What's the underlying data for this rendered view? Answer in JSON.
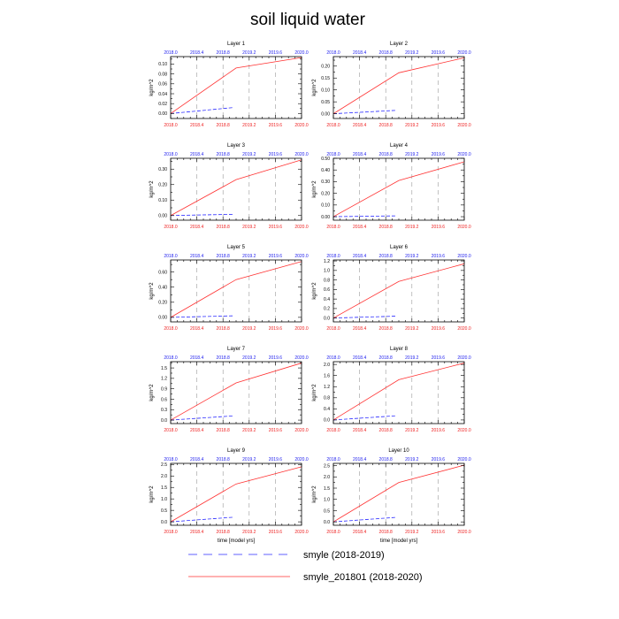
{
  "figure_title": "soil liquid water",
  "legend": [
    {
      "label": "smyle (2018-2019)",
      "color": "#2c2cff",
      "style": "dashed"
    },
    {
      "label": "smyle_201801 (2018-2020)",
      "color": "#ff3333",
      "style": "solid"
    }
  ],
  "chart_data": [
    {
      "type": "line",
      "title": "Layer 1",
      "ylabel": "kg/m^2",
      "xlabel": "",
      "xlim": [
        2018.0,
        2020.0
      ],
      "x_ticks": [
        "2018.0",
        "2018.4",
        "2018.8",
        "2019.2",
        "2019.6",
        "2020.0"
      ],
      "top_x_ticks": [
        "2018.0",
        "2018.4",
        "2018.8",
        "2019.2",
        "2019.6",
        "2020.0"
      ],
      "ylim": [
        -0.01,
        0.115
      ],
      "y_ticks": [
        "0.00",
        "0.02",
        "0.04",
        "0.06",
        "0.08",
        "0.10"
      ],
      "vlines": [
        2018.4,
        2018.8,
        2019.2,
        2019.6
      ],
      "series": [
        {
          "x": [
            2018.0,
            2018.95
          ],
          "values": [
            0.0,
            0.012
          ]
        },
        {
          "x": [
            2018.0,
            2019.0,
            2020.0
          ],
          "values": [
            0.0,
            0.092,
            0.113
          ]
        }
      ]
    },
    {
      "type": "line",
      "title": "Layer 2",
      "ylabel": "kg/m^2",
      "xlabel": "",
      "xlim": [
        2018.0,
        2020.0
      ],
      "x_ticks": [
        "2018.0",
        "2018.4",
        "2018.8",
        "2019.2",
        "2019.6",
        "2020.0"
      ],
      "top_x_ticks": [
        "2018.0",
        "2018.4",
        "2018.8",
        "2019.2",
        "2019.6",
        "2020.0"
      ],
      "ylim": [
        -0.02,
        0.24
      ],
      "y_ticks": [
        "0.00",
        "0.05",
        "0.10",
        "0.15",
        "0.20"
      ],
      "vlines": [
        2018.4,
        2018.8,
        2019.2,
        2019.6
      ],
      "series": [
        {
          "x": [
            2018.0,
            2018.95
          ],
          "values": [
            0.0,
            0.014
          ]
        },
        {
          "x": [
            2018.0,
            2019.0,
            2020.0
          ],
          "values": [
            0.0,
            0.172,
            0.235
          ]
        }
      ]
    },
    {
      "type": "line",
      "title": "Layer 3",
      "ylabel": "kg/m^2",
      "xlabel": "",
      "xlim": [
        2018.0,
        2020.0
      ],
      "x_ticks": [
        "2018.0",
        "2018.4",
        "2018.8",
        "2019.2",
        "2019.6",
        "2020.0"
      ],
      "top_x_ticks": [
        "2018.0",
        "2018.4",
        "2018.8",
        "2019.2",
        "2019.6",
        "2020.0"
      ],
      "ylim": [
        -0.03,
        0.37
      ],
      "y_ticks": [
        "0.00",
        "0.10",
        "0.20",
        "0.30"
      ],
      "vlines": [
        2018.4,
        2018.8,
        2019.2,
        2019.6
      ],
      "series": [
        {
          "x": [
            2018.0,
            2018.95
          ],
          "values": [
            0.0,
            0.008
          ]
        },
        {
          "x": [
            2018.0,
            2019.0,
            2020.0
          ],
          "values": [
            0.0,
            0.232,
            0.36
          ]
        }
      ]
    },
    {
      "type": "line",
      "title": "Layer 4",
      "ylabel": "kg/m^2",
      "xlabel": "",
      "xlim": [
        2018.0,
        2020.0
      ],
      "x_ticks": [
        "2018.0",
        "2018.4",
        "2018.8",
        "2019.2",
        "2019.6",
        "2020.0"
      ],
      "top_x_ticks": [
        "2018.0",
        "2018.4",
        "2018.8",
        "2019.2",
        "2019.6",
        "2020.0"
      ],
      "ylim": [
        -0.03,
        0.5
      ],
      "y_ticks": [
        "0.00",
        "0.10",
        "0.20",
        "0.30",
        "0.40",
        "0.50"
      ],
      "vlines": [
        2018.4,
        2018.8,
        2019.2,
        2019.6
      ],
      "series": [
        {
          "x": [
            2018.0,
            2018.95
          ],
          "values": [
            0.0,
            0.007
          ]
        },
        {
          "x": [
            2018.0,
            2019.0,
            2020.0
          ],
          "values": [
            0.0,
            0.31,
            0.47
          ]
        }
      ]
    },
    {
      "type": "line",
      "title": "Layer 5",
      "ylabel": "kg/m^2",
      "xlabel": "",
      "xlim": [
        2018.0,
        2020.0
      ],
      "x_ticks": [
        "2018.0",
        "2018.4",
        "2018.8",
        "2019.2",
        "2019.6",
        "2020.0"
      ],
      "top_x_ticks": [
        "2018.0",
        "2018.4",
        "2018.8",
        "2019.2",
        "2019.6",
        "2020.0"
      ],
      "ylim": [
        -0.06,
        0.76
      ],
      "y_ticks": [
        "0.00",
        "0.20",
        "0.40",
        "0.60"
      ],
      "vlines": [
        2018.4,
        2018.8,
        2019.2,
        2019.6
      ],
      "series": [
        {
          "x": [
            2018.0,
            2018.95
          ],
          "values": [
            0.0,
            0.02
          ]
        },
        {
          "x": [
            2018.0,
            2019.0,
            2020.0
          ],
          "values": [
            0.0,
            0.5,
            0.74
          ]
        }
      ]
    },
    {
      "type": "line",
      "title": "Layer 6",
      "ylabel": "kg/m^2",
      "xlabel": "",
      "xlim": [
        2018.0,
        2020.0
      ],
      "x_ticks": [
        "2018.0",
        "2018.4",
        "2018.8",
        "2019.2",
        "2019.6",
        "2020.0"
      ],
      "top_x_ticks": [
        "2018.0",
        "2018.4",
        "2018.8",
        "2019.2",
        "2019.6",
        "2020.0"
      ],
      "ylim": [
        -0.08,
        1.22
      ],
      "y_ticks": [
        "0.0",
        "0.2",
        "0.4",
        "0.6",
        "0.8",
        "1.0",
        "1.2"
      ],
      "vlines": [
        2018.4,
        2018.8,
        2019.2,
        2019.6
      ],
      "series": [
        {
          "x": [
            2018.0,
            2018.95
          ],
          "values": [
            0.0,
            0.04
          ]
        },
        {
          "x": [
            2018.0,
            2019.0,
            2020.0
          ],
          "values": [
            0.0,
            0.77,
            1.14
          ]
        }
      ]
    },
    {
      "type": "line",
      "title": "Layer 7",
      "ylabel": "kg/m^2",
      "xlabel": "",
      "xlim": [
        2018.0,
        2020.0
      ],
      "x_ticks": [
        "2018.0",
        "2018.4",
        "2018.8",
        "2019.2",
        "2019.6",
        "2020.0"
      ],
      "top_x_ticks": [
        "2018.0",
        "2018.4",
        "2018.8",
        "2019.2",
        "2019.6",
        "2020.0"
      ],
      "ylim": [
        -0.1,
        1.68
      ],
      "y_ticks": [
        "0.0",
        "0.3",
        "0.6",
        "0.9",
        "1.2",
        "1.5"
      ],
      "vlines": [
        2018.4,
        2018.8,
        2019.2,
        2019.6
      ],
      "series": [
        {
          "x": [
            2018.0,
            2018.95
          ],
          "values": [
            0.0,
            0.12
          ]
        },
        {
          "x": [
            2018.0,
            2019.0,
            2020.0
          ],
          "values": [
            0.0,
            1.07,
            1.64
          ]
        }
      ]
    },
    {
      "type": "line",
      "title": "Layer 8",
      "ylabel": "kg/m^2",
      "xlabel": "",
      "xlim": [
        2018.0,
        2020.0
      ],
      "x_ticks": [
        "2018.0",
        "2018.4",
        "2018.8",
        "2019.2",
        "2019.6",
        "2020.0"
      ],
      "top_x_ticks": [
        "2018.0",
        "2018.4",
        "2018.8",
        "2019.2",
        "2019.6",
        "2020.0"
      ],
      "ylim": [
        -0.13,
        2.1
      ],
      "y_ticks": [
        "0.0",
        "0.4",
        "0.8",
        "1.2",
        "1.6",
        "2.0"
      ],
      "vlines": [
        2018.4,
        2018.8,
        2019.2,
        2019.6
      ],
      "series": [
        {
          "x": [
            2018.0,
            2018.95
          ],
          "values": [
            0.0,
            0.15
          ]
        },
        {
          "x": [
            2018.0,
            2019.0,
            2020.0
          ],
          "values": [
            0.0,
            1.45,
            2.05
          ]
        }
      ]
    },
    {
      "type": "line",
      "title": "Layer 9",
      "ylabel": "kg/m^2",
      "xlabel": "time [model yrs]",
      "xlim": [
        2018.0,
        2020.0
      ],
      "x_ticks": [
        "2018.0",
        "2018.4",
        "2018.8",
        "2019.2",
        "2019.6",
        "2020.0"
      ],
      "top_x_ticks": [
        "2018.0",
        "2018.4",
        "2018.8",
        "2019.2",
        "2019.6",
        "2020.0"
      ],
      "ylim": [
        -0.15,
        2.55
      ],
      "y_ticks": [
        "0.0",
        "0.5",
        "1.0",
        "1.5",
        "2.0",
        "2.5"
      ],
      "vlines": [
        2018.4,
        2018.8,
        2019.2,
        2019.6
      ],
      "series": [
        {
          "x": [
            2018.0,
            2018.95
          ],
          "values": [
            0.0,
            0.2
          ]
        },
        {
          "x": [
            2018.0,
            2019.0,
            2020.0
          ],
          "values": [
            0.0,
            1.65,
            2.4
          ]
        }
      ]
    },
    {
      "type": "line",
      "title": "Layer 10",
      "ylabel": "kg/m^2",
      "xlabel": "time [model yrs]",
      "xlim": [
        2018.0,
        2020.0
      ],
      "x_ticks": [
        "2018.0",
        "2018.4",
        "2018.8",
        "2019.2",
        "2019.6",
        "2020.0"
      ],
      "top_x_ticks": [
        "2018.0",
        "2018.4",
        "2018.8",
        "2019.2",
        "2019.6",
        "2020.0"
      ],
      "ylim": [
        -0.15,
        2.6
      ],
      "y_ticks": [
        "0.0",
        "0.5",
        "1.0",
        "1.5",
        "2.0",
        "2.5"
      ],
      "vlines": [
        2018.4,
        2018.8,
        2019.2,
        2019.6
      ],
      "series": [
        {
          "x": [
            2018.0,
            2018.95
          ],
          "values": [
            0.0,
            0.2
          ]
        },
        {
          "x": [
            2018.0,
            2019.0,
            2020.0
          ],
          "values": [
            0.0,
            1.75,
            2.52
          ]
        }
      ]
    }
  ]
}
